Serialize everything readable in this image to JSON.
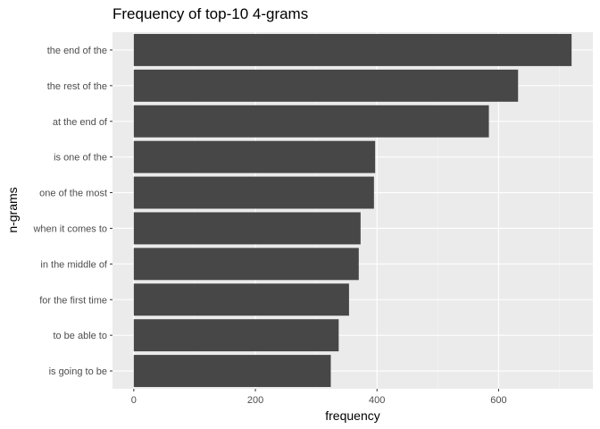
{
  "colors": {
    "panel_background": "#ebebeb",
    "grid_major": "#ffffff",
    "grid_minor": "#f5f5f5",
    "bar_fill": "#474747",
    "tick_mark": "#333333"
  },
  "chart_data": {
    "type": "bar",
    "orientation": "horizontal",
    "title": "Frequency of top-10 4-grams",
    "xlabel": "frequency",
    "ylabel": "n-grams",
    "xlim": [
      -35,
      755
    ],
    "xticks": [
      0,
      200,
      400,
      600
    ],
    "grid": true,
    "legend": "none",
    "categories": [
      "the end of the",
      "the rest of the",
      "at the end of",
      "is one of the",
      "one of the most",
      "when it comes to",
      "in the middle of",
      "for the first time",
      "to be able to",
      "is going to be"
    ],
    "values": [
      720,
      632,
      584,
      397,
      395,
      373,
      370,
      354,
      337,
      324
    ]
  }
}
